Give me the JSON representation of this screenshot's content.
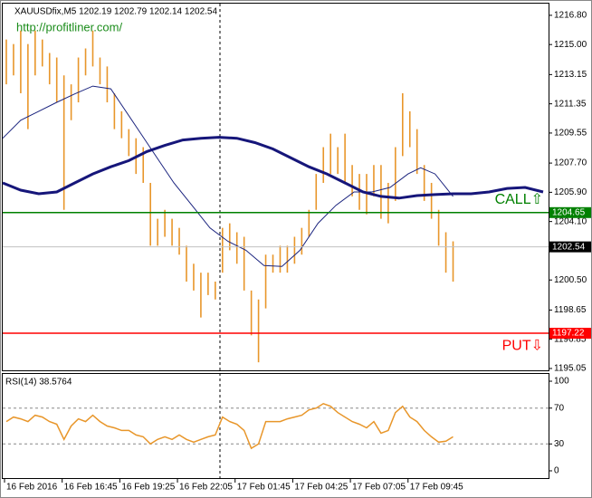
{
  "chart_data": [
    {
      "type": "range",
      "title": "XAUUSDfix,M5  1202.19 1202.79 1202.14 1202.54",
      "subtitle": "http://profitliner.com/",
      "color": "#e8962a",
      "xlim": [
        0,
        303
      ],
      "ylim": [
        1194.88,
        1217.52
      ],
      "xticks": [
        {
          "value": 1,
          "label": "16 Feb 2016"
        },
        {
          "value": 33,
          "label": "16 Feb 16:45"
        },
        {
          "value": 65,
          "label": "16 Feb 19:25"
        },
        {
          "value": 97,
          "label": "16 Feb 22:05"
        },
        {
          "value": 129,
          "label": "17 Feb 01:45"
        },
        {
          "value": 161,
          "label": "17 Feb 04:25"
        },
        {
          "value": 193,
          "label": "17 Feb 07:05"
        },
        {
          "value": 225,
          "label": "17 Feb 09:45"
        }
      ],
      "yticks": [
        {
          "value": 1216.8,
          "label": "1216.80"
        },
        {
          "value": 1215,
          "label": "1215.00"
        },
        1213.15,
        1211.35,
        1209.55,
        {
          "value": 1207.7,
          "label": "1207.70"
        },
        {
          "value": 1205.9,
          "label": "1205.90"
        },
        {
          "value": 1204.1,
          "label": "1204.10"
        },
        {
          "value": 1200.5,
          "label": "1200.50"
        },
        1198.65,
        1196.85,
        1195.05
      ],
      "x": [
        2,
        6,
        10,
        14,
        18,
        22,
        26,
        30,
        34,
        38,
        42,
        46,
        50,
        54,
        58,
        62,
        66,
        70,
        74,
        78,
        82,
        86,
        90,
        94,
        98,
        102,
        106,
        110,
        114,
        118,
        122,
        126,
        130,
        134,
        138,
        142,
        146,
        150,
        154,
        158,
        162,
        166,
        170,
        174,
        178,
        182,
        186,
        190,
        194,
        198,
        202,
        206,
        210,
        214,
        218,
        222,
        226,
        230,
        234,
        238,
        242,
        246,
        250
      ],
      "high": [
        1215.31,
        1215.03,
        1215.86,
        1215.03,
        1215.86,
        1215.31,
        1214.48,
        1214.2,
        1213.1,
        1212.55,
        1214.2,
        1214.76,
        1215.86,
        1214.2,
        1213.65,
        1212.0,
        1210.89,
        1209.79,
        1209.23,
        1208.68,
        1206.48,
        1204.27,
        1204.82,
        1204.27,
        1203.71,
        1202.61,
        1201.5,
        1200.95,
        1200.95,
        1200.4,
        1203.71,
        1203.99,
        1203.44,
        1203.16,
        1199.85,
        1199.3,
        1202.06,
        1202.06,
        1202.61,
        1202.61,
        1203.16,
        1203.71,
        1204.82,
        1207.03,
        1208.68,
        1209.51,
        1208.68,
        1209.51,
        1207.58,
        1207.03,
        1207.03,
        1207.58,
        1207.58,
        1206.48,
        1208.68,
        1212.0,
        1210.89,
        1209.79,
        1207.58,
        1206.48,
        1204.82,
        1203.44,
        1202.88
      ],
      "low": [
        1212.55,
        1213.1,
        1212.0,
        1209.79,
        1213.1,
        1213.65,
        1212.55,
        1211.44,
        1204.82,
        1210.34,
        1211.44,
        1213.1,
        1213.65,
        1212.55,
        1211.44,
        1209.79,
        1209.23,
        1208.13,
        1207.03,
        1206.48,
        1202.61,
        1202.61,
        1203.16,
        1202.61,
        1202.06,
        1200.4,
        1199.85,
        1198.19,
        1199.57,
        1199.3,
        1200.95,
        1202.33,
        1201.5,
        1199.85,
        1197.09,
        1195.43,
        1198.75,
        1200.95,
        1200.95,
        1200.95,
        1201.5,
        1202.06,
        1203.16,
        1204.82,
        1206.48,
        1207.03,
        1207.03,
        1206.48,
        1205.65,
        1204.82,
        1204.54,
        1205.65,
        1204.27,
        1203.99,
        1205.37,
        1208.13,
        1208.68,
        1207.03,
        1205.37,
        1204.27,
        1202.61,
        1200.95,
        1200.4
      ],
      "lines": [
        {
          "color": "#1a237e",
          "width": 1,
          "x": [
            0,
            10,
            20,
            30,
            40,
            50,
            60,
            65,
            75,
            85,
            95,
            105,
            115,
            125,
            135,
            145,
            155,
            165,
            175,
            185,
            195,
            205,
            215,
            225,
            232,
            240,
            250
          ],
          "values": [
            1209.23,
            1210.34,
            1210.89,
            1211.44,
            1211.96,
            1212.44,
            1212.27,
            1211.44,
            1209.79,
            1208.13,
            1206.48,
            1205.1,
            1203.71,
            1202.88,
            1202.33,
            1201.39,
            1201.34,
            1202.33,
            1203.99,
            1205.1,
            1205.92,
            1205.92,
            1206.2,
            1207.03,
            1207.41,
            1207.03,
            1205.65
          ]
        },
        {
          "color": "#16167a",
          "width": 3,
          "x": [
            0,
            10,
            20,
            30,
            40,
            50,
            60,
            70,
            80,
            90,
            100,
            110,
            120,
            130,
            140,
            150,
            160,
            170,
            180,
            190,
            200,
            210,
            220,
            230,
            240,
            250,
            260,
            270,
            280,
            290,
            300
          ],
          "values": [
            1206.48,
            1206.03,
            1205.81,
            1205.92,
            1206.48,
            1207.03,
            1207.47,
            1207.85,
            1208.41,
            1208.79,
            1209.12,
            1209.23,
            1209.29,
            1209.23,
            1208.96,
            1208.57,
            1208.02,
            1207.47,
            1207.03,
            1206.48,
            1205.92,
            1205.65,
            1205.54,
            1205.7,
            1205.76,
            1205.81,
            1205.81,
            1205.92,
            1206.14,
            1206.2,
            1205.92
          ]
        }
      ],
      "levels": [
        {
          "value": 1204.65,
          "color": "#008000",
          "note": "CALL⇧"
        },
        {
          "value": 1197.22,
          "color": "#ff0000",
          "note": "PUT⇩"
        },
        {
          "value": 1202.54,
          "color": "#000000"
        }
      ]
    },
    {
      "type": "line",
      "title": "RSI(14) 38.5764",
      "color": "#e8962a",
      "xlim": [
        0,
        303
      ],
      "ylim": [
        -8.1,
        108.1
      ],
      "yticks": [
        100,
        70,
        30,
        0
      ],
      "x": [
        2,
        6,
        10,
        14,
        18,
        22,
        26,
        30,
        34,
        38,
        42,
        46,
        50,
        54,
        58,
        62,
        66,
        70,
        74,
        78,
        82,
        86,
        90,
        94,
        98,
        102,
        106,
        110,
        114,
        118,
        122,
        126,
        130,
        134,
        138,
        142,
        146,
        150,
        154,
        158,
        162,
        166,
        170,
        174,
        178,
        182,
        186,
        190,
        194,
        198,
        202,
        206,
        210,
        214,
        218,
        222,
        226,
        230,
        234,
        238,
        242,
        246,
        250
      ],
      "values": [
        55,
        60,
        58,
        55,
        62,
        60,
        55,
        52,
        35,
        50,
        58,
        55,
        62,
        55,
        50,
        48,
        45,
        45,
        40,
        38,
        30,
        35,
        38,
        35,
        40,
        35,
        32,
        35,
        38,
        40,
        60,
        55,
        52,
        45,
        25,
        30,
        55,
        55,
        55,
        58,
        60,
        62,
        68,
        70,
        75,
        72,
        65,
        60,
        55,
        52,
        48,
        55,
        42,
        45,
        65,
        72,
        60,
        55,
        45,
        38,
        32,
        33,
        38
      ]
    }
  ]
}
